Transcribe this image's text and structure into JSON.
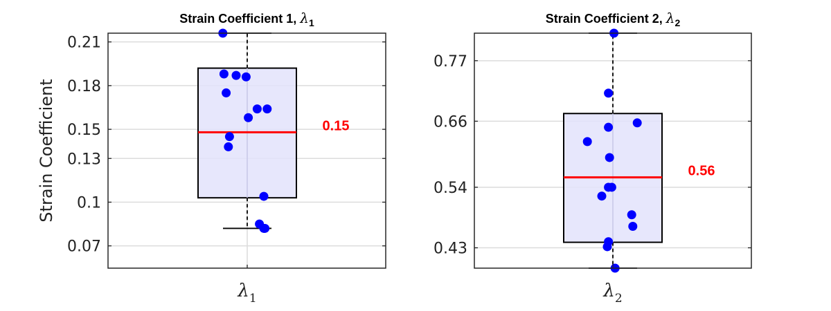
{
  "chart_data": [
    {
      "type": "box",
      "title": "Strain Coefficient 1, ",
      "title_symbol": "λ",
      "title_subscript": "1",
      "ylabel": "Strain Coefficient",
      "xlabel": "",
      "category_symbol": "λ",
      "category_subscript": "1",
      "ylim": [
        0.0547,
        0.216
      ],
      "yticks": [
        0.07,
        0.1,
        0.13,
        0.15,
        0.18,
        0.21
      ],
      "ytick_labels": [
        "0.07",
        "0.1",
        "0.13",
        "0.15",
        "0.18",
        "0.21"
      ],
      "grid": true,
      "box": {
        "q1": 0.103,
        "median": 0.148,
        "q3": 0.192,
        "whisker_low": 0.082,
        "whisker_high": 0.216
      },
      "median_label": "0.15",
      "points": [
        {
          "x": -0.22,
          "y": 0.216
        },
        {
          "x": -0.21,
          "y": 0.188
        },
        {
          "x": -0.1,
          "y": 0.187
        },
        {
          "x": -0.01,
          "y": 0.186
        },
        {
          "x": -0.19,
          "y": 0.175
        },
        {
          "x": 0.09,
          "y": 0.164
        },
        {
          "x": 0.18,
          "y": 0.164
        },
        {
          "x": 0.01,
          "y": 0.158
        },
        {
          "x": -0.16,
          "y": 0.145
        },
        {
          "x": -0.17,
          "y": 0.138
        },
        {
          "x": 0.15,
          "y": 0.104
        },
        {
          "x": 0.11,
          "y": 0.085
        },
        {
          "x": 0.15,
          "y": 0.082
        },
        {
          "x": 0.16,
          "y": 0.082
        }
      ],
      "colors": {
        "box_fill": "#e3e3fb",
        "median": "#ff0000",
        "points": "#0000ff"
      }
    },
    {
      "type": "box",
      "title": "Strain Coefficient 2, ",
      "title_symbol": "λ",
      "title_subscript": "2",
      "ylabel": "",
      "xlabel": "",
      "category_symbol": "λ",
      "category_subscript": "2",
      "ylim": [
        0.393,
        0.82
      ],
      "yticks": [
        0.43,
        0.54,
        0.66,
        0.77
      ],
      "ytick_labels": [
        "0.43",
        "0.54",
        "0.66",
        "0.77"
      ],
      "grid": true,
      "box": {
        "q1": 0.44,
        "median": 0.558,
        "q3": 0.674,
        "whisker_low": 0.393,
        "whisker_high": 0.82
      },
      "median_label": "0.56",
      "points": [
        {
          "x": 0.01,
          "y": 0.82
        },
        {
          "x": -0.04,
          "y": 0.711
        },
        {
          "x": 0.22,
          "y": 0.657
        },
        {
          "x": -0.04,
          "y": 0.649
        },
        {
          "x": -0.23,
          "y": 0.623
        },
        {
          "x": -0.03,
          "y": 0.594
        },
        {
          "x": -0.04,
          "y": 0.54
        },
        {
          "x": -0.01,
          "y": 0.54
        },
        {
          "x": -0.1,
          "y": 0.524
        },
        {
          "x": 0.17,
          "y": 0.49
        },
        {
          "x": 0.18,
          "y": 0.469
        },
        {
          "x": -0.04,
          "y": 0.441
        },
        {
          "x": -0.05,
          "y": 0.432
        },
        {
          "x": 0.02,
          "y": 0.393
        }
      ],
      "colors": {
        "box_fill": "#e3e3fb",
        "median": "#ff0000",
        "points": "#0000ff"
      }
    }
  ]
}
